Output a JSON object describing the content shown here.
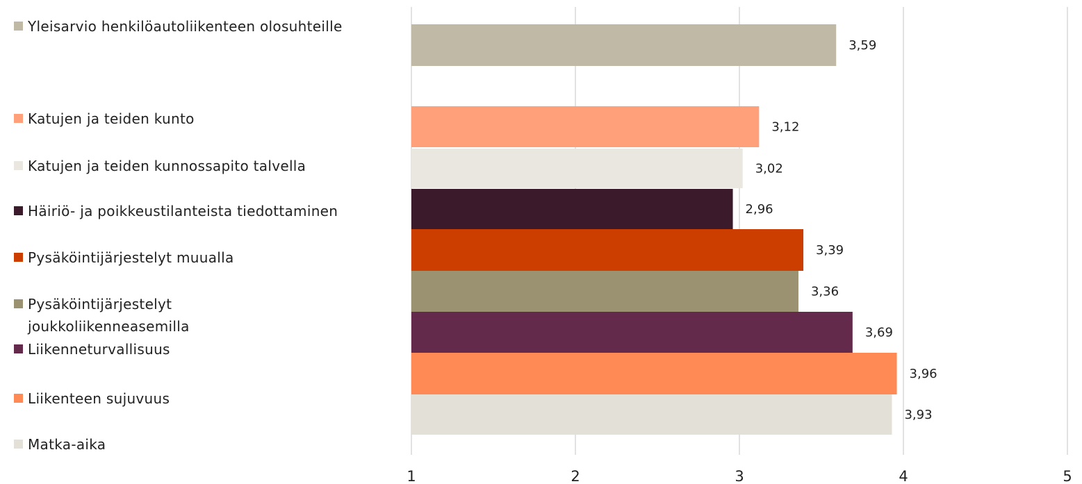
{
  "chart_data": {
    "type": "bar",
    "orientation": "horizontal",
    "title": "",
    "xlabel": "",
    "ylabel": "",
    "xlim": [
      1,
      5
    ],
    "x_ticks": [
      "1",
      "2",
      "3",
      "4",
      "5"
    ],
    "grid": true,
    "legend_placement": "left",
    "series": [
      {
        "name": "Yleisarvio henkilöautoliikenteen olosuhteille",
        "value": 3.59,
        "label": "3,59",
        "color": "#bfb9a6"
      },
      {
        "name": "Katujen ja teiden kunto",
        "value": 3.12,
        "label": "3,12",
        "color": "#ffa07a"
      },
      {
        "name": "Katujen ja teiden kunnossapito talvella",
        "value": 3.02,
        "label": "3,02",
        "color": "#eae7e0"
      },
      {
        "name": "Häiriö- ja poikkeustilanteista tiedottaminen",
        "value": 2.96,
        "label": "2,96",
        "color": "#3a1a2b"
      },
      {
        "name": "Pysäköintijärjestelyt muualla",
        "value": 3.39,
        "label": "3,39",
        "color": "#cc3d00"
      },
      {
        "name": "Pysäköintijärjestelyt joukkoliikenneasemilla",
        "value": 3.36,
        "label": "3,36",
        "color": "#9a9271"
      },
      {
        "name": "Liikenneturvallisuus",
        "value": 3.69,
        "label": "3,69",
        "color": "#632a4c"
      },
      {
        "name": "Liikenteen sujuvuus",
        "value": 3.96,
        "label": "3,96",
        "color": "#ff8a55"
      },
      {
        "name": "Matka-aika",
        "value": 3.93,
        "label": "3,93",
        "color": "#e3e0d8"
      }
    ]
  }
}
